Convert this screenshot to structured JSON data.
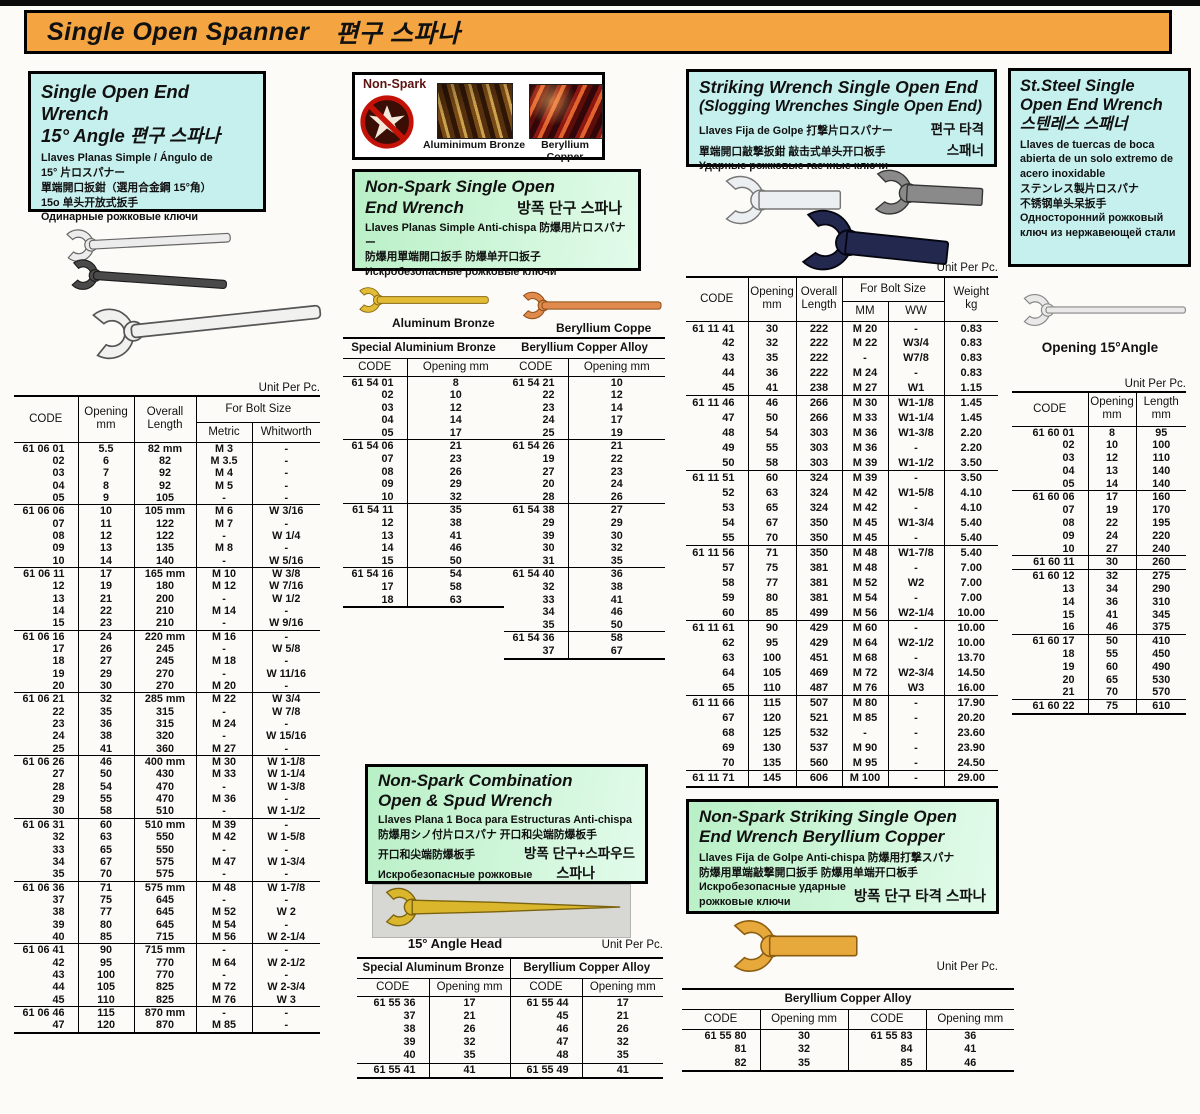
{
  "colors": {
    "banner_bg": "#f4a440",
    "cyan_bg": "#c6f0ee",
    "green_bg": "#c9f4d0",
    "steel": "#ececec",
    "gold": "#e3bc35",
    "copper": "#e08a4e"
  },
  "banner": {
    "title": "Single Open Spanner",
    "title_kr": "편구 스파나"
  },
  "unit_per_pc": "Unit Per Pc.",
  "left": {
    "box": {
      "title1": "Single Open End Wrench",
      "title2": "15° Angle  편구 스파나",
      "lines": [
        "Llaves Planas Simple / Ángulo de",
        "15° 片ロスパナー",
        "單端開口扳鉗（選用合金鋼 15°角）",
        "15o 单头开放式扳手",
        "Одинарные рожковые ключи"
      ]
    },
    "table": {
      "h_code": "CODE",
      "h_opening": "Opening\nmm",
      "h_length": "Overall\nLength",
      "h_bolt": "For Bolt Size",
      "h_metric": "Metric",
      "h_whitworth": "Whitworth",
      "groups": [
        [
          [
            "61 06 01",
            "5.5",
            "82 mm",
            "M 3",
            "-"
          ],
          [
            "02",
            "6",
            "82",
            "M 3.5",
            "-"
          ],
          [
            "03",
            "7",
            "92",
            "M 4",
            "-"
          ],
          [
            "04",
            "8",
            "92",
            "M 5",
            "-"
          ],
          [
            "05",
            "9",
            "105",
            "-",
            "-"
          ]
        ],
        [
          [
            "61 06 06",
            "10",
            "105 mm",
            "M 6",
            "W 3/16"
          ],
          [
            "07",
            "11",
            "122",
            "M 7",
            "-"
          ],
          [
            "08",
            "12",
            "122",
            "-",
            "W 1/4"
          ],
          [
            "09",
            "13",
            "135",
            "M 8",
            "-"
          ],
          [
            "10",
            "14",
            "140",
            "-",
            "W 5/16"
          ]
        ],
        [
          [
            "61 06 11",
            "17",
            "165 mm",
            "M 10",
            "W 3/8"
          ],
          [
            "12",
            "19",
            "180",
            "M 12",
            "W 7/16"
          ],
          [
            "13",
            "21",
            "200",
            "-",
            "W 1/2"
          ],
          [
            "14",
            "22",
            "210",
            "M 14",
            "-"
          ],
          [
            "15",
            "23",
            "210",
            "-",
            "W 9/16"
          ]
        ],
        [
          [
            "61 06 16",
            "24",
            "220 mm",
            "M 16",
            "-"
          ],
          [
            "17",
            "26",
            "245",
            "-",
            "W 5/8"
          ],
          [
            "18",
            "27",
            "245",
            "M 18",
            "-"
          ],
          [
            "19",
            "29",
            "270",
            "-",
            "W 11/16"
          ],
          [
            "20",
            "30",
            "270",
            "M 20",
            "-"
          ]
        ],
        [
          [
            "61 06 21",
            "32",
            "285 mm",
            "M 22",
            "W 3/4"
          ],
          [
            "22",
            "35",
            "315",
            "-",
            "W 7/8"
          ],
          [
            "23",
            "36",
            "315",
            "M 24",
            "-"
          ],
          [
            "24",
            "38",
            "320",
            "-",
            "W 15/16"
          ],
          [
            "25",
            "41",
            "360",
            "M 27",
            "-"
          ]
        ],
        [
          [
            "61 06 26",
            "46",
            "400 mm",
            "M 30",
            "W 1-1/8"
          ],
          [
            "27",
            "50",
            "430",
            "M 33",
            "W 1-1/4"
          ],
          [
            "28",
            "54",
            "470",
            "-",
            "W 1-3/8"
          ],
          [
            "29",
            "55",
            "470",
            "M 36",
            "-"
          ],
          [
            "30",
            "58",
            "510",
            "-",
            "W 1-1/2"
          ]
        ],
        [
          [
            "61 06 31",
            "60",
            "510 mm",
            "M 39",
            "-"
          ],
          [
            "32",
            "63",
            "550",
            "M 42",
            "W 1-5/8"
          ],
          [
            "33",
            "65",
            "550",
            "-",
            "-"
          ],
          [
            "34",
            "67",
            "575",
            "M 47",
            "W 1-3/4"
          ],
          [
            "35",
            "70",
            "575",
            "-",
            "-"
          ]
        ],
        [
          [
            "61 06 36",
            "71",
            "575 mm",
            "M 48",
            "W 1-7/8"
          ],
          [
            "37",
            "75",
            "645",
            "-",
            "-"
          ],
          [
            "38",
            "77",
            "645",
            "M 52",
            "W 2"
          ],
          [
            "39",
            "80",
            "645",
            "M 54",
            "-"
          ],
          [
            "40",
            "85",
            "715",
            "M 56",
            "W 2-1/4"
          ]
        ],
        [
          [
            "61 06 41",
            "90",
            "715 mm",
            "-",
            "-"
          ],
          [
            "42",
            "95",
            "770",
            "M 64",
            "W 2-1/2"
          ],
          [
            "43",
            "100",
            "770",
            "-",
            "-"
          ],
          [
            "44",
            "105",
            "825",
            "M 72",
            "W 2-3/4"
          ],
          [
            "45",
            "110",
            "825",
            "M 76",
            "W 3"
          ]
        ],
        [
          [
            "61 06 46",
            "115",
            "870 mm",
            "-",
            "-"
          ],
          [
            "47",
            "120",
            "870",
            "M 85",
            "-"
          ]
        ]
      ]
    }
  },
  "nonspark": {
    "photo_box": {
      "label": "Non-Spark",
      "photo1_label": "Aluminimum Bronze",
      "photo2_label": "Beryllium Copper"
    },
    "box": {
      "title1": "Non-Spark Single Open",
      "title2": "End Wrench",
      "title_kr": "방폭 단구 스파나",
      "lines": [
        "Llaves Planas Simple Anti-chispa  防爆用片ロスパナー",
        "防爆用單端開口扳手 防爆单开口扳子",
        "Искробезопасные рожковые ключи"
      ]
    },
    "wrench1_label": "Aluminum Bronze",
    "wrench2_label": "Beryllium Coppe",
    "table": {
      "left_title": "Special Aluminium Bronze",
      "right_title": "Beryllium Copper Alloy",
      "h_code": "CODE",
      "h_opening": "Opening mm",
      "left_groups": [
        [
          [
            "61 54 01",
            "8"
          ],
          [
            "02",
            "10"
          ],
          [
            "03",
            "12"
          ],
          [
            "04",
            "14"
          ],
          [
            "05",
            "17"
          ]
        ],
        [
          [
            "61 54 06",
            "21"
          ],
          [
            "07",
            "23"
          ],
          [
            "08",
            "26"
          ],
          [
            "09",
            "29"
          ],
          [
            "10",
            "32"
          ]
        ],
        [
          [
            "61 54 11",
            "35"
          ],
          [
            "12",
            "38"
          ],
          [
            "13",
            "41"
          ],
          [
            "14",
            "46"
          ],
          [
            "15",
            "50"
          ]
        ],
        [
          [
            "61 54 16",
            "54"
          ],
          [
            "17",
            "58"
          ],
          [
            "18",
            "63"
          ]
        ]
      ],
      "right_groups": [
        [
          [
            "61 54 21",
            "10"
          ],
          [
            "22",
            "12"
          ],
          [
            "23",
            "14"
          ],
          [
            "24",
            "17"
          ],
          [
            "25",
            "19"
          ]
        ],
        [
          [
            "61 54 26",
            "21"
          ],
          [
            "19",
            "22"
          ],
          [
            "27",
            "23"
          ],
          [
            "20",
            "24"
          ],
          [
            "28",
            "26"
          ]
        ],
        [
          [
            "61 54 38",
            "27"
          ],
          [
            "29",
            "29"
          ],
          [
            "39",
            "30"
          ],
          [
            "30",
            "32"
          ],
          [
            "31",
            "35"
          ]
        ],
        [
          [
            "61 54 40",
            "36"
          ],
          [
            "32",
            "38"
          ],
          [
            "33",
            "41"
          ],
          [
            "34",
            "46"
          ],
          [
            "35",
            "50"
          ]
        ],
        [
          [
            "61 54 36",
            "58"
          ],
          [
            "37",
            "67"
          ]
        ]
      ]
    }
  },
  "striking": {
    "box": {
      "title1": "Striking Wrench Single Open End",
      "title2": "(Slogging Wrenches Single Open End)",
      "l1": "Llaves Fija de Golpe 打撃片ロスパナー",
      "kr1": "편구 타격",
      "l2": "單端開口敲撃扳鉗  敲击式单头开口板手",
      "kr2": "스패너",
      "l3": "Ударные рожковые гаечные ключи"
    },
    "table": {
      "h_code": "CODE",
      "h_opening": "Opening\nmm",
      "h_length": "Overall\nLength",
      "h_bolt": "For Bolt Size",
      "h_mm": "MM",
      "h_ww": "WW",
      "h_weight": "Weight\nkg",
      "groups": [
        [
          [
            "61 11 41",
            "30",
            "222",
            "M 20",
            "-",
            "0.83"
          ],
          [
            "42",
            "32",
            "222",
            "M 22",
            "W3/4",
            "0.83"
          ],
          [
            "43",
            "35",
            "222",
            "-",
            "W7/8",
            "0.83"
          ],
          [
            "44",
            "36",
            "222",
            "M 24",
            "-",
            "0.83"
          ],
          [
            "45",
            "41",
            "238",
            "M 27",
            "W1",
            "1.15"
          ]
        ],
        [
          [
            "61 11 46",
            "46",
            "266",
            "M 30",
            "W1-1/8",
            "1.45"
          ],
          [
            "47",
            "50",
            "266",
            "M 33",
            "W1-1/4",
            "1.45"
          ],
          [
            "48",
            "54",
            "303",
            "M 36",
            "W1-3/8",
            "2.20"
          ],
          [
            "49",
            "55",
            "303",
            "M 36",
            "-",
            "2.20"
          ],
          [
            "50",
            "58",
            "303",
            "M 39",
            "W1-1/2",
            "3.50"
          ]
        ],
        [
          [
            "61 11 51",
            "60",
            "324",
            "M 39",
            "-",
            "3.50"
          ],
          [
            "52",
            "63",
            "324",
            "M 42",
            "W1-5/8",
            "4.10"
          ],
          [
            "53",
            "65",
            "324",
            "M 42",
            "-",
            "4.10"
          ],
          [
            "54",
            "67",
            "350",
            "M 45",
            "W1-3/4",
            "5.40"
          ],
          [
            "55",
            "70",
            "350",
            "M 45",
            "-",
            "5.40"
          ]
        ],
        [
          [
            "61 11 56",
            "71",
            "350",
            "M 48",
            "W1-7/8",
            "5.40"
          ],
          [
            "57",
            "75",
            "381",
            "M 48",
            "-",
            "7.00"
          ],
          [
            "58",
            "77",
            "381",
            "M 52",
            "W2",
            "7.00"
          ],
          [
            "59",
            "80",
            "381",
            "M 54",
            "-",
            "7.00"
          ],
          [
            "60",
            "85",
            "499",
            "M 56",
            "W2-1/4",
            "10.00"
          ]
        ],
        [
          [
            "61 11 61",
            "90",
            "429",
            "M 60",
            "-",
            "10.00"
          ],
          [
            "62",
            "95",
            "429",
            "M 64",
            "W2-1/2",
            "10.00"
          ],
          [
            "63",
            "100",
            "451",
            "M 68",
            "-",
            "13.70"
          ],
          [
            "64",
            "105",
            "469",
            "M 72",
            "W2-3/4",
            "14.50"
          ],
          [
            "65",
            "110",
            "487",
            "M 76",
            "W3",
            "16.00"
          ]
        ],
        [
          [
            "61 11 66",
            "115",
            "507",
            "M 80",
            "-",
            "17.90"
          ],
          [
            "67",
            "120",
            "521",
            "M 85",
            "-",
            "20.20"
          ],
          [
            "68",
            "125",
            "532",
            "-",
            "-",
            "23.60"
          ],
          [
            "69",
            "130",
            "537",
            "M 90",
            "-",
            "23.90"
          ],
          [
            "70",
            "135",
            "560",
            "M 95",
            "-",
            "24.50"
          ]
        ],
        [
          [
            "61 11 71",
            "145",
            "606",
            "M 100",
            "-",
            "29.00"
          ]
        ]
      ]
    }
  },
  "ststeel": {
    "box": {
      "title1": "St.Steel Single",
      "title2": "Open End Wrench",
      "title_kr": "스텐레스 스패너",
      "lines": [
        "Llaves de tuercas de boca",
        "abierta de un solo extremo de",
        "acero inoxidable",
        "ステンレス製片ロスパナ",
        "不锈钢单头呆扳手",
        "Односторонний рожковый",
        "ключ из нержавеющей стали"
      ]
    },
    "wrench_label": "Opening 15°Angle",
    "table": {
      "h_code": "CODE",
      "h_opening": "Opening\nmm",
      "h_length": "Length\nmm",
      "groups": [
        [
          [
            "61 60 01",
            "8",
            "95"
          ],
          [
            "02",
            "10",
            "100"
          ],
          [
            "03",
            "12",
            "110"
          ],
          [
            "04",
            "13",
            "140"
          ],
          [
            "05",
            "14",
            "140"
          ]
        ],
        [
          [
            "61 60 06",
            "17",
            "160"
          ],
          [
            "07",
            "19",
            "170"
          ],
          [
            "08",
            "22",
            "195"
          ],
          [
            "09",
            "24",
            "220"
          ],
          [
            "10",
            "27",
            "240"
          ]
        ],
        [
          [
            "61 60 11",
            "30",
            "260"
          ]
        ],
        [
          [
            "61 60 12",
            "32",
            "275"
          ],
          [
            "13",
            "34",
            "290"
          ],
          [
            "14",
            "36",
            "310"
          ],
          [
            "15",
            "41",
            "345"
          ],
          [
            "16",
            "46",
            "375"
          ]
        ],
        [
          [
            "61 60 17",
            "50",
            "410"
          ],
          [
            "18",
            "55",
            "450"
          ],
          [
            "19",
            "60",
            "490"
          ],
          [
            "20",
            "65",
            "530"
          ],
          [
            "21",
            "70",
            "570"
          ]
        ],
        [
          [
            "61 60 22",
            "75",
            "610"
          ]
        ]
      ]
    }
  },
  "spud": {
    "box": {
      "title1": "Non-Spark Combination",
      "title2": "Open & Spud Wrench",
      "l1": "Llaves Plana 1 Boca para Estructuras Anti-chispa",
      "l2": "防爆用シノ付片ロスパナ  开口和尖端防爆板手",
      "l3": "开口和尖端防爆板手",
      "kr1": "방폭 단구+스파우드",
      "l4": "Искробезопасные рожковые",
      "l5": "ключи с острым концом",
      "kr2": "스파나"
    },
    "wrench_label": "15° Angle Head",
    "table": {
      "left_title": "Special Aluminum Bronze",
      "right_title": "Beryllium Copper Alloy",
      "h_code": "CODE",
      "h_opening": "Opening mm",
      "groups": [
        [
          [
            "61 55 36",
            "17",
            "61 55 44",
            "17"
          ],
          [
            "37",
            "21",
            "45",
            "21"
          ],
          [
            "38",
            "26",
            "46",
            "26"
          ],
          [
            "39",
            "32",
            "47",
            "32"
          ],
          [
            "40",
            "35",
            "48",
            "35"
          ]
        ],
        [
          [
            "61 55 41",
            "41",
            "61 55 49",
            "41"
          ]
        ]
      ]
    }
  },
  "becu": {
    "box": {
      "title1": "Non-Spark Striking Single Open",
      "title2": "End Wrench Beryllium  Copper",
      "l1": "Llaves Fija de Golpe Anti-chispa  防爆用打撃スパナ",
      "l2": "防爆用單端敲撃開口扳手   防爆用单端开口板手",
      "l3": "Искробезопасные ударные",
      "l4": "рожковые ключи",
      "kr": "방폭 단구 타격 스파나"
    },
    "table": {
      "title": "Beryllium Copper Alloy",
      "h_code": "CODE",
      "h_opening": "Opening mm",
      "groups": [
        [
          [
            "61 55 80",
            "30",
            "61 55 83",
            "36"
          ],
          [
            "81",
            "32",
            "84",
            "41"
          ],
          [
            "82",
            "35",
            "85",
            "46"
          ]
        ]
      ]
    }
  }
}
